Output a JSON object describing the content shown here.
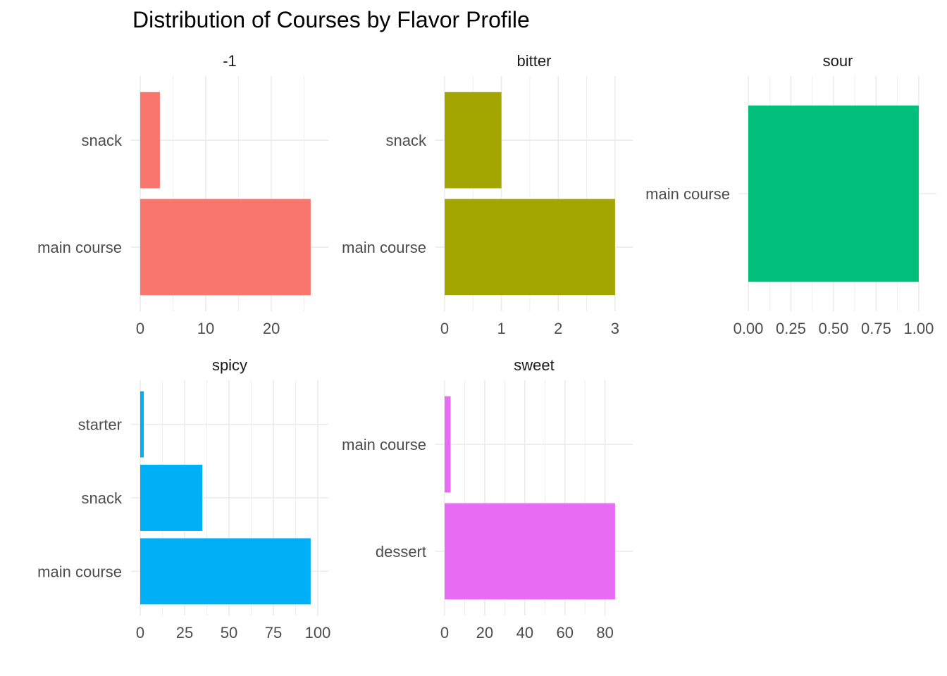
{
  "chart_data": {
    "type": "bar",
    "orientation": "horizontal",
    "title": "Distribution of Courses by Flavor Profile",
    "xlabel": "",
    "ylabel": "",
    "facets": [
      {
        "label": "-1",
        "color": "#F8766D",
        "categories": [
          "main course",
          "snack"
        ],
        "values": [
          26,
          3
        ],
        "xlim": [
          0,
          27.3
        ],
        "ticks": [
          0,
          10,
          20
        ],
        "tick_labels": [
          "0",
          "10",
          "20"
        ]
      },
      {
        "label": "bitter",
        "color": "#A3A500",
        "categories": [
          "main course",
          "snack"
        ],
        "values": [
          3,
          1
        ],
        "xlim": [
          0,
          3.15
        ],
        "ticks": [
          0,
          1,
          2,
          3
        ],
        "tick_labels": [
          "0",
          "1",
          "2",
          "3"
        ]
      },
      {
        "label": "sour",
        "color": "#00BF7D",
        "categories": [
          "main course"
        ],
        "values": [
          1
        ],
        "xlim": [
          0,
          1.05
        ],
        "ticks": [
          0,
          0.25,
          0.5,
          0.75,
          1.0
        ],
        "tick_labels": [
          "0.00",
          "0.25",
          "0.50",
          "0.75",
          "1.00"
        ]
      },
      {
        "label": "spicy",
        "color": "#00B0F6",
        "categories": [
          "main course",
          "snack",
          "starter"
        ],
        "values": [
          96,
          35,
          2
        ],
        "xlim": [
          0,
          100.8
        ],
        "ticks": [
          0,
          25,
          50,
          75,
          100
        ],
        "tick_labels": [
          "0",
          "25",
          "50",
          "75",
          "100"
        ]
      },
      {
        "label": "sweet",
        "color": "#E76BF3",
        "categories": [
          "dessert",
          "main course"
        ],
        "values": [
          85,
          3
        ],
        "xlim": [
          0,
          89.25
        ],
        "ticks": [
          0,
          20,
          40,
          60,
          80
        ],
        "tick_labels": [
          "0",
          "20",
          "40",
          "60",
          "80"
        ]
      }
    ]
  }
}
